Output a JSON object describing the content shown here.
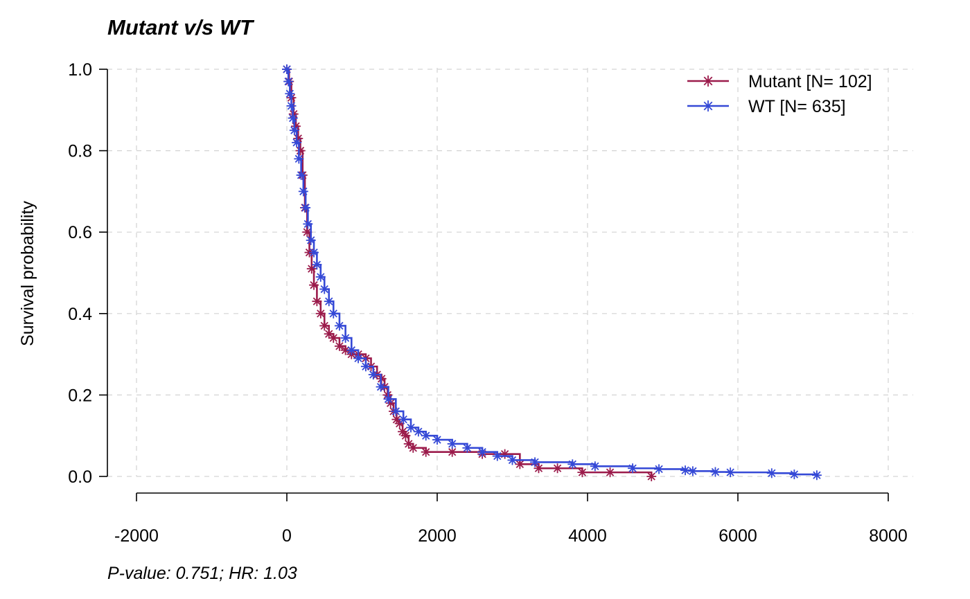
{
  "chart_data": {
    "type": "line",
    "title": "Mutant v/s WT",
    "xlabel": "",
    "ylabel": "Survival probability",
    "xlim": [
      -2000,
      8000
    ],
    "ylim": [
      0,
      1
    ],
    "xticks": [
      -2000,
      0,
      2000,
      4000,
      6000,
      8000
    ],
    "yticks": [
      0.0,
      0.2,
      0.4,
      0.6,
      0.8,
      1.0
    ],
    "xtick_labels": [
      "-2000",
      "0",
      "2000",
      "4000",
      "6000",
      "8000"
    ],
    "ytick_labels": [
      "0.0",
      "0.2",
      "0.4",
      "0.6",
      "0.8",
      "1.0"
    ],
    "grid": true,
    "legend_position": "top-right",
    "footnote": "P-value: 0.751; HR: 1.03",
    "series": [
      {
        "name": "Mutant [N= 102]",
        "color": "#9B1B4B",
        "marker": "asterisk",
        "x": [
          0,
          30,
          60,
          90,
          120,
          150,
          180,
          210,
          240,
          270,
          300,
          330,
          360,
          400,
          450,
          500,
          560,
          620,
          700,
          780,
          860,
          950,
          1050,
          1120,
          1200,
          1260,
          1300,
          1340,
          1380,
          1420,
          1460,
          1500,
          1540,
          1580,
          1620,
          1680,
          1850,
          2200,
          2600,
          2900,
          3100,
          3350,
          3600,
          3930,
          4300,
          4850
        ],
        "y": [
          1.0,
          0.97,
          0.93,
          0.89,
          0.86,
          0.83,
          0.8,
          0.74,
          0.66,
          0.6,
          0.55,
          0.51,
          0.47,
          0.43,
          0.4,
          0.37,
          0.35,
          0.34,
          0.32,
          0.31,
          0.3,
          0.3,
          0.29,
          0.27,
          0.25,
          0.24,
          0.22,
          0.2,
          0.18,
          0.16,
          0.14,
          0.13,
          0.11,
          0.1,
          0.08,
          0.07,
          0.06,
          0.06,
          0.055,
          0.055,
          0.03,
          0.02,
          0.02,
          0.01,
          0.01,
          0.0
        ]
      },
      {
        "name": "WT [N= 635]",
        "color": "#3549D6",
        "marker": "asterisk",
        "x": [
          0,
          20,
          40,
          60,
          80,
          100,
          130,
          160,
          190,
          220,
          250,
          280,
          320,
          360,
          400,
          450,
          500,
          560,
          620,
          700,
          780,
          860,
          950,
          1050,
          1150,
          1250,
          1350,
          1450,
          1550,
          1650,
          1750,
          1850,
          2000,
          2200,
          2400,
          2600,
          2800,
          3000,
          3300,
          3800,
          4100,
          4600,
          4950,
          5300,
          5400,
          5700,
          5900,
          6450,
          6750,
          7050
        ],
        "y": [
          1.0,
          0.97,
          0.94,
          0.91,
          0.88,
          0.85,
          0.82,
          0.78,
          0.74,
          0.7,
          0.66,
          0.62,
          0.58,
          0.55,
          0.52,
          0.49,
          0.46,
          0.43,
          0.4,
          0.37,
          0.34,
          0.31,
          0.29,
          0.27,
          0.25,
          0.22,
          0.19,
          0.16,
          0.14,
          0.12,
          0.11,
          0.1,
          0.09,
          0.08,
          0.07,
          0.06,
          0.05,
          0.04,
          0.035,
          0.03,
          0.025,
          0.02,
          0.018,
          0.015,
          0.013,
          0.011,
          0.01,
          0.008,
          0.005,
          0.003
        ]
      }
    ]
  }
}
